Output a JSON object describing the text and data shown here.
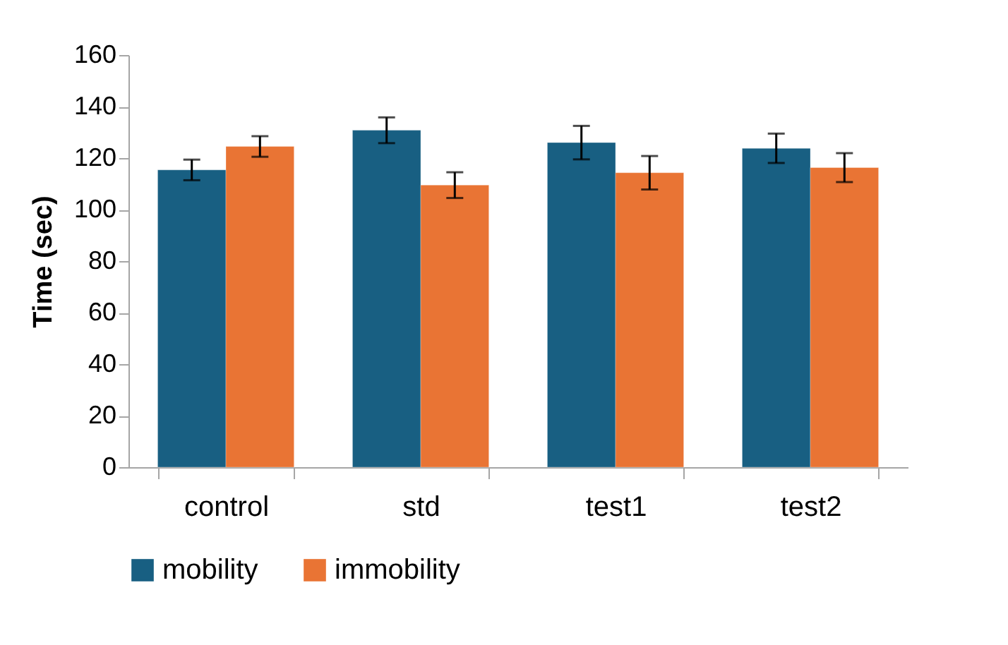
{
  "chart_data": {
    "type": "bar",
    "ylabel": "Time (sec)",
    "categories": [
      "control",
      "std",
      "test1",
      "test2"
    ],
    "series": [
      {
        "name": "mobility",
        "color": "#185f82",
        "values": [
          115.4,
          130.8,
          126,
          123.8
        ],
        "errors": [
          4,
          5,
          6.5,
          5.7
        ]
      },
      {
        "name": "immobility",
        "color": "#e97434",
        "values": [
          124.5,
          109.5,
          114.3,
          116.3
        ],
        "errors": [
          4,
          5,
          6.5,
          5.6
        ]
      }
    ],
    "ylim": [
      0,
      160
    ],
    "yticks": [
      0,
      20,
      40,
      60,
      80,
      100,
      120,
      140,
      160
    ],
    "grid": false,
    "legend": "bottom"
  }
}
